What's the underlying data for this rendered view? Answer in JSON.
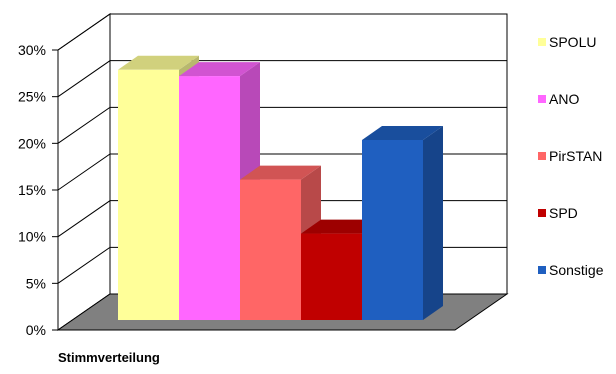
{
  "chart_data": {
    "type": "bar",
    "categories": [
      "SPOLU",
      "ANO",
      "PirSTAN",
      "SPD",
      "Sonstige"
    ],
    "values": [
      27.8,
      27.1,
      15.6,
      9.6,
      20.0
    ],
    "colors": [
      "#FFFF99",
      "#FF66FF",
      "#FF6666",
      "#C00000",
      "#1F5FC0"
    ],
    "xlabel": "Stimmverteilung",
    "ylabel": "",
    "ylim": [
      0,
      30
    ],
    "yticks": [
      "0%",
      "5%",
      "10%",
      "15%",
      "20%",
      "25%",
      "30%"
    ],
    "grid": true,
    "legend_position": "right",
    "style": "3d-column"
  }
}
